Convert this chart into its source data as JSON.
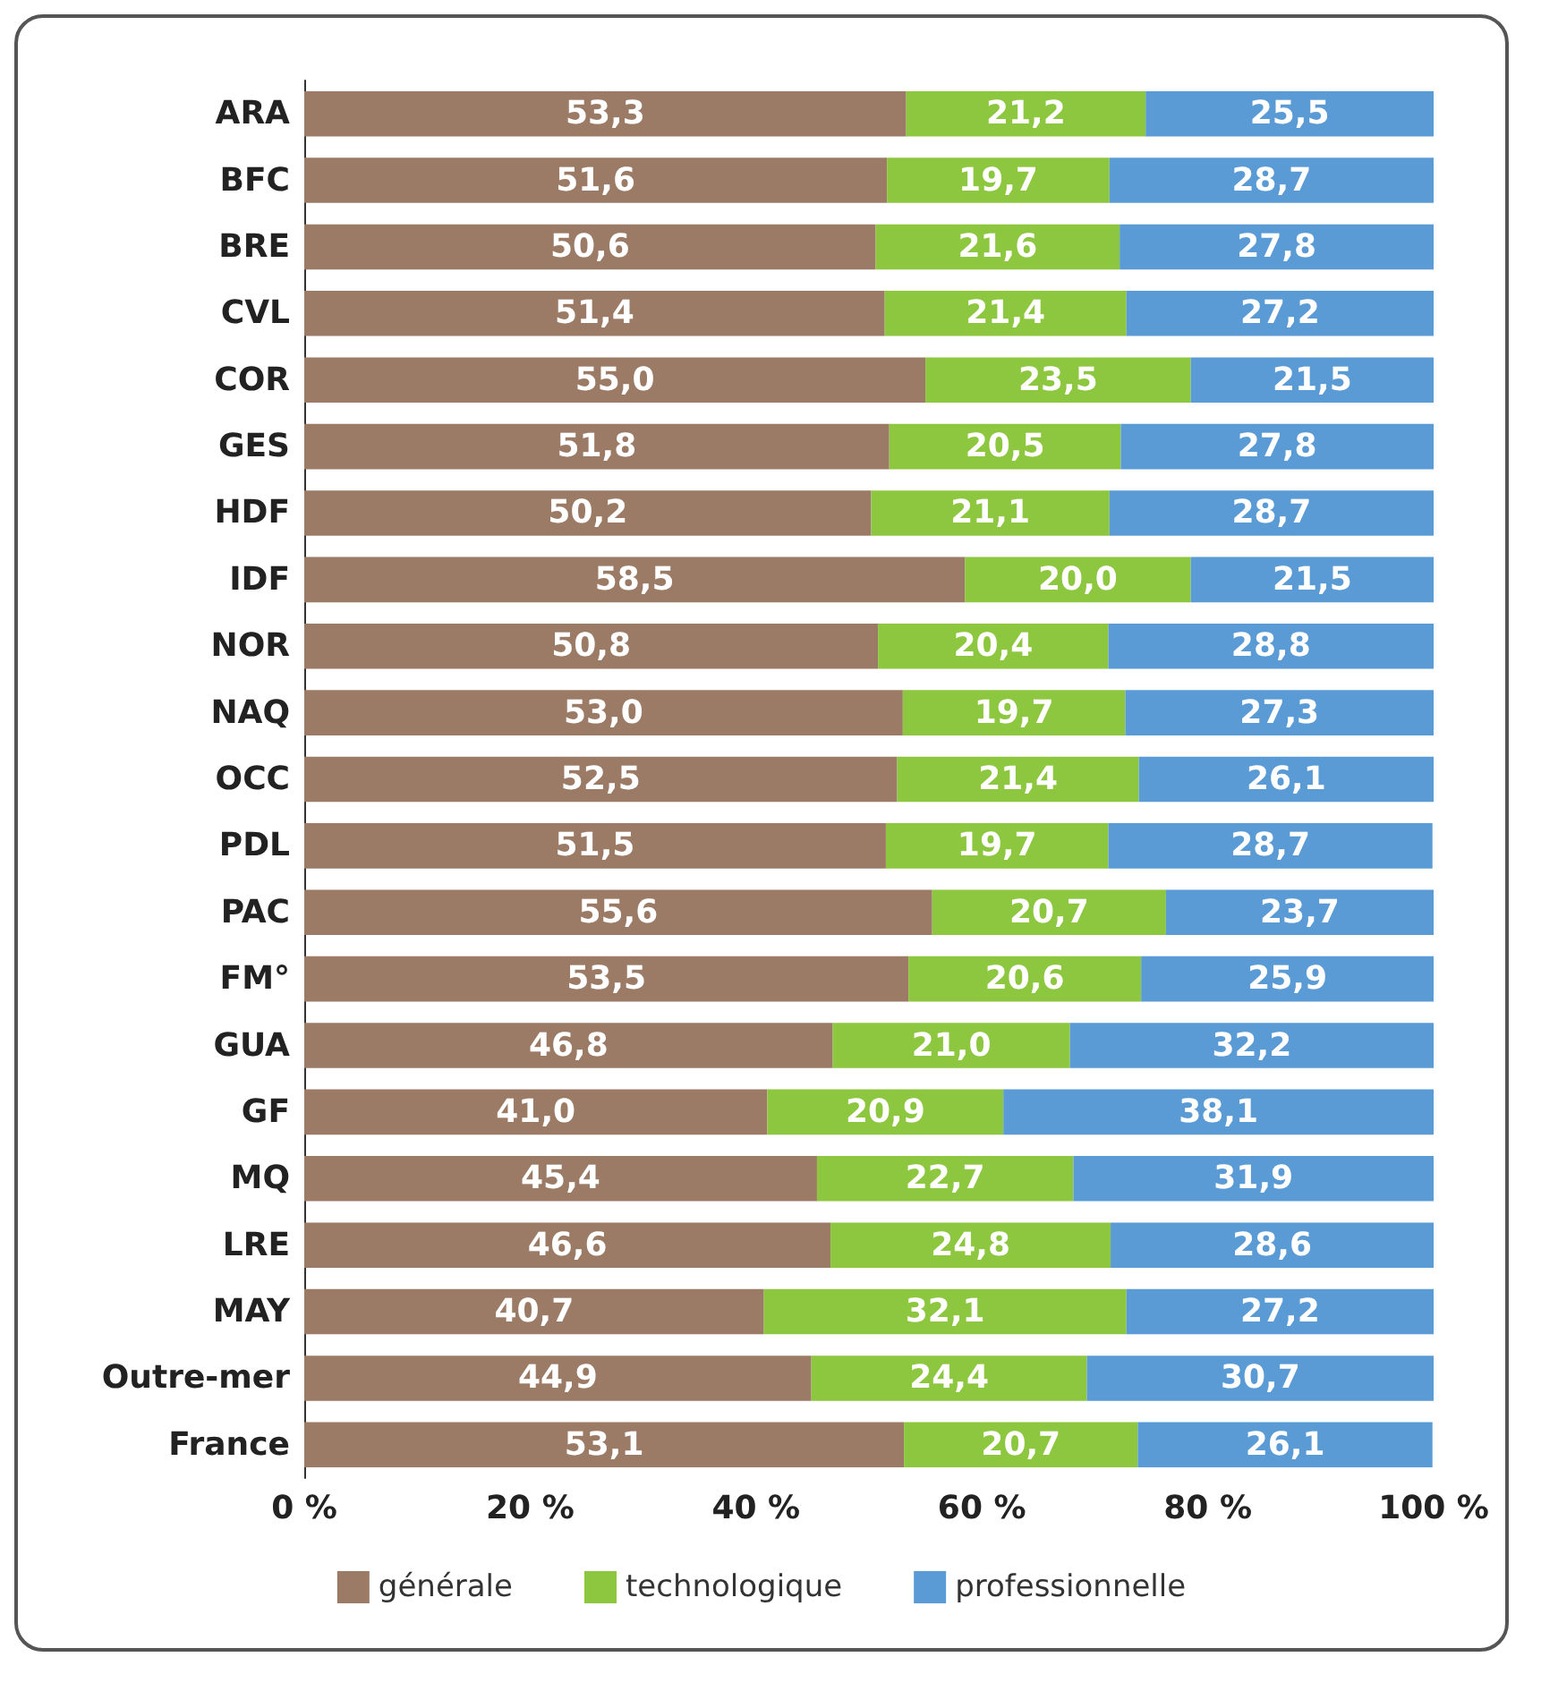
{
  "chart_data": {
    "type": "bar",
    "orientation": "horizontal",
    "stacked": true,
    "categories": [
      "ARA",
      "BFC",
      "BRE",
      "CVL",
      "COR",
      "GES",
      "HDF",
      "IDF",
      "NOR",
      "NAQ",
      "OCC",
      "PDL",
      "PAC",
      "FM°",
      "GUA",
      "GF",
      "MQ",
      "LRE",
      "MAY",
      "Outre-mer",
      "France"
    ],
    "series": [
      {
        "name": "générale",
        "color": "#9c7b66",
        "values": [
          53.3,
          51.6,
          50.6,
          51.4,
          55.0,
          51.8,
          50.2,
          58.5,
          50.8,
          53.0,
          52.5,
          51.5,
          55.6,
          53.5,
          46.8,
          41.0,
          45.4,
          46.6,
          40.7,
          44.9,
          53.1
        ],
        "value_labels": [
          "53,3",
          "51,6",
          "50,6",
          "51,4",
          "55,0",
          "51,8",
          "50,2",
          "58,5",
          "50,8",
          "53,0",
          "52,5",
          "51,5",
          "55,6",
          "53,5",
          "46,8",
          "41,0",
          "45,4",
          "46,6",
          "40,7",
          "44,9",
          "53,1"
        ]
      },
      {
        "name": "technologique",
        "color": "#8dc63f",
        "values": [
          21.2,
          19.7,
          21.6,
          21.4,
          23.5,
          20.5,
          21.1,
          20.0,
          20.4,
          19.7,
          21.4,
          19.7,
          20.7,
          20.6,
          21.0,
          20.9,
          22.7,
          24.8,
          32.1,
          24.4,
          20.7
        ],
        "value_labels": [
          "21,2",
          "19,7",
          "21,6",
          "21,4",
          "23,5",
          "20,5",
          "21,1",
          "20,0",
          "20,4",
          "19,7",
          "21,4",
          "19,7",
          "20,7",
          "20,6",
          "21,0",
          "20,9",
          "22,7",
          "24,8",
          "32,1",
          "24,4",
          "20,7"
        ]
      },
      {
        "name": "professionnelle",
        "color": "#5b9bd5",
        "values": [
          25.5,
          28.7,
          27.8,
          27.2,
          21.5,
          27.8,
          28.7,
          21.5,
          28.8,
          27.3,
          26.1,
          28.7,
          23.7,
          25.9,
          32.2,
          38.1,
          31.9,
          28.6,
          27.2,
          30.7,
          26.1
        ],
        "value_labels": [
          "25,5",
          "28,7",
          "27,8",
          "27,2",
          "21,5",
          "27,8",
          "28,7",
          "21,5",
          "28,8",
          "27,3",
          "26,1",
          "28,7",
          "23,7",
          "25,9",
          "32,2",
          "38,1",
          "31,9",
          "28,6",
          "27,2",
          "30,7",
          "26,1"
        ]
      }
    ],
    "xlim": [
      0,
      100
    ],
    "xticks": [
      {
        "value": 0,
        "label": "0 %"
      },
      {
        "value": 20,
        "label": "20 %"
      },
      {
        "value": 40,
        "label": "40 %"
      },
      {
        "value": 60,
        "label": "60 %"
      },
      {
        "value": 80,
        "label": "80 %"
      },
      {
        "value": 100,
        "label": "100 %"
      }
    ],
    "grid": false,
    "legend": "bottom"
  }
}
